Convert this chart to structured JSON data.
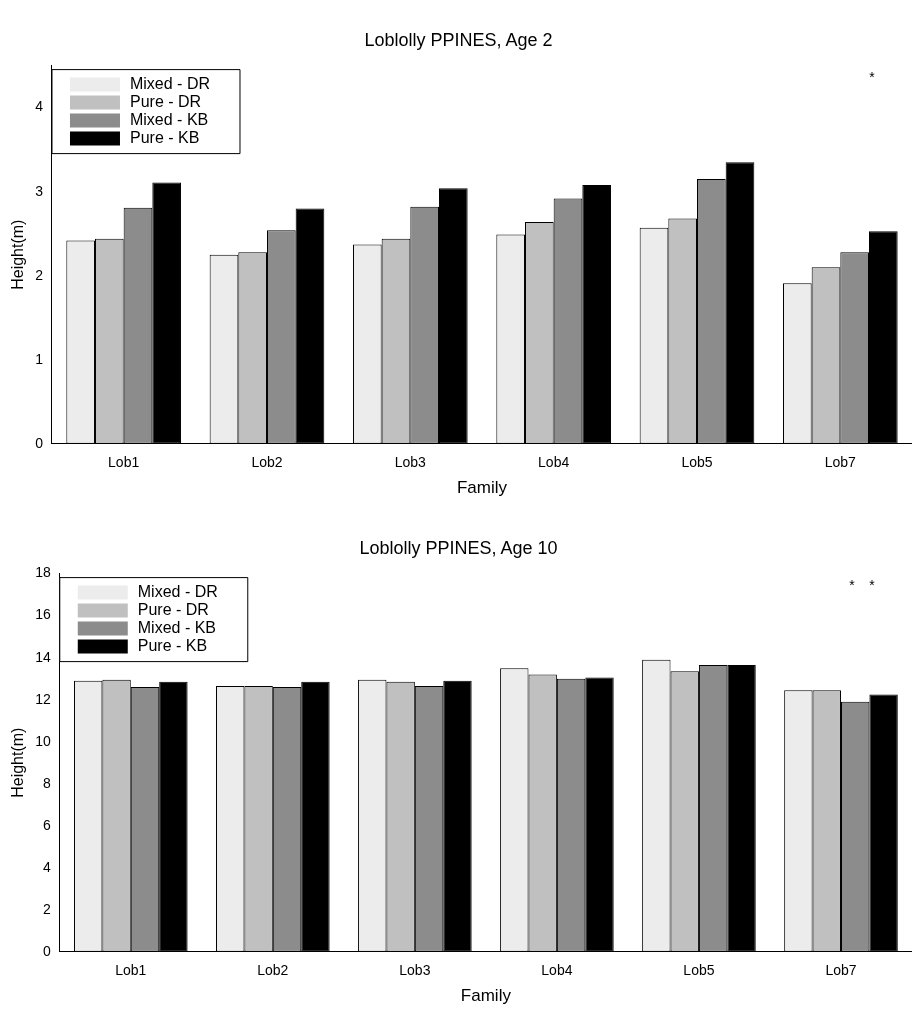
{
  "chart_data": [
    {
      "type": "bar",
      "title": "Loblolly PPINES, Age 2",
      "xlabel": "Family",
      "ylabel": "Height(m)",
      "categories": [
        "Lob1",
        "Lob2",
        "Lob3",
        "Lob4",
        "Lob5",
        "Lob7"
      ],
      "series": [
        {
          "name": "Mixed - DR",
          "color": "#ececec",
          "values": [
            2.42,
            2.25,
            2.37,
            2.49,
            2.57,
            1.91
          ]
        },
        {
          "name": "Pure - DR",
          "color": "#c0c0c0",
          "values": [
            2.44,
            2.28,
            2.44,
            2.64,
            2.68,
            2.1
          ]
        },
        {
          "name": "Mixed - KB",
          "color": "#8c8c8c",
          "values": [
            2.81,
            2.54,
            2.82,
            2.92,
            3.15,
            2.28
          ]
        },
        {
          "name": "Pure - KB",
          "color": "#000000",
          "values": [
            3.11,
            2.8,
            3.04,
            3.08,
            3.35,
            2.53
          ]
        }
      ],
      "ylim": [
        0,
        4.5
      ],
      "yticks": [
        0,
        1,
        2,
        3,
        4
      ],
      "legend": "top left",
      "annotations": [
        "*"
      ]
    },
    {
      "type": "bar",
      "title": "Loblolly PPINES, Age 10",
      "xlabel": "Family",
      "ylabel": "Height(m)",
      "categories": [
        "Lob1",
        "Lob2",
        "Lob3",
        "Lob4",
        "Lob5",
        "Lob7"
      ],
      "series": [
        {
          "name": "Mixed - DR",
          "color": "#ececec",
          "values": [
            12.9,
            12.65,
            12.95,
            13.5,
            13.9,
            12.45
          ]
        },
        {
          "name": "Pure - DR",
          "color": "#c0c0c0",
          "values": [
            12.95,
            12.65,
            12.85,
            13.2,
            13.35,
            12.45
          ]
        },
        {
          "name": "Mixed - KB",
          "color": "#8c8c8c",
          "values": [
            12.6,
            12.6,
            12.65,
            13.0,
            13.65,
            11.9
          ]
        },
        {
          "name": "Pure - KB",
          "color": "#000000",
          "values": [
            12.85,
            12.85,
            12.9,
            13.05,
            13.65,
            12.25
          ]
        }
      ],
      "ylim": [
        0,
        18
      ],
      "yticks": [
        0,
        2,
        4,
        6,
        8,
        10,
        12,
        14,
        16,
        18
      ],
      "legend": "top left",
      "annotations": [
        "*",
        "*"
      ]
    }
  ]
}
